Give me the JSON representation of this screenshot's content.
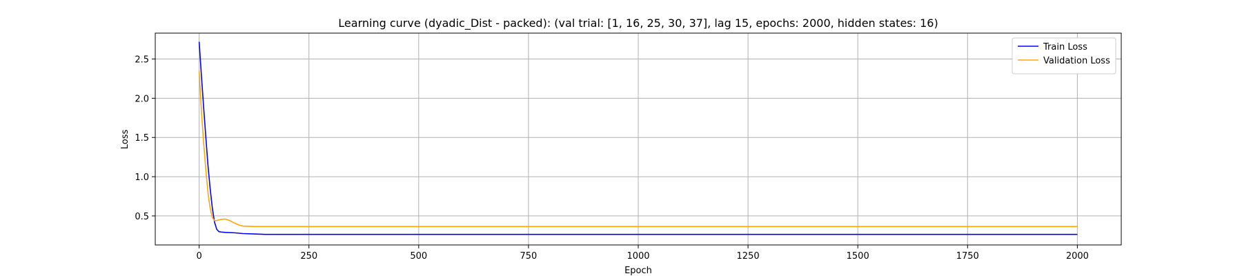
{
  "chart_data": {
    "type": "line",
    "title": "Learning curve (dyadic_Dist - packed): (val trial: [1, 16, 25, 30, 37], lag 15, epochs: 2000, hidden states: 16)",
    "xlabel": "Epoch",
    "ylabel": "Loss",
    "xlim": [
      -100,
      2100
    ],
    "ylim": [
      0.13,
      2.83
    ],
    "xticks": [
      0,
      250,
      500,
      750,
      1000,
      1250,
      1500,
      1750,
      2000
    ],
    "yticks": [
      0.5,
      1.0,
      1.5,
      2.0,
      2.5
    ],
    "xtick_labels": [
      "0",
      "250",
      "500",
      "750",
      "1000",
      "1250",
      "1500",
      "1750",
      "2000"
    ],
    "ytick_labels": [
      "0.5",
      "1.0",
      "1.5",
      "2.0",
      "2.5"
    ],
    "grid": true,
    "legend_position": "top-right",
    "series": [
      {
        "name": "Train Loss",
        "color": "#0000ff",
        "x": [
          0,
          5,
          10,
          15,
          20,
          25,
          30,
          35,
          40,
          45,
          50,
          60,
          80,
          100,
          125,
          150,
          200,
          300,
          500,
          750,
          1000,
          1250,
          1500,
          1750,
          2000
        ],
        "y": [
          2.72,
          2.3,
          1.9,
          1.52,
          1.15,
          0.85,
          0.6,
          0.42,
          0.33,
          0.3,
          0.295,
          0.29,
          0.285,
          0.275,
          0.27,
          0.265,
          0.265,
          0.265,
          0.265,
          0.265,
          0.265,
          0.265,
          0.265,
          0.265,
          0.265
        ]
      },
      {
        "name": "Validation Loss",
        "color": "#ffa500",
        "x": [
          0,
          5,
          10,
          15,
          20,
          25,
          30,
          35,
          40,
          45,
          50,
          60,
          70,
          80,
          90,
          100,
          125,
          150,
          200,
          500,
          1000,
          1500,
          2000
        ],
        "y": [
          2.35,
          1.85,
          1.45,
          1.1,
          0.8,
          0.6,
          0.48,
          0.44,
          0.44,
          0.45,
          0.455,
          0.46,
          0.44,
          0.41,
          0.385,
          0.37,
          0.365,
          0.365,
          0.365,
          0.365,
          0.365,
          0.365,
          0.365
        ]
      }
    ]
  }
}
